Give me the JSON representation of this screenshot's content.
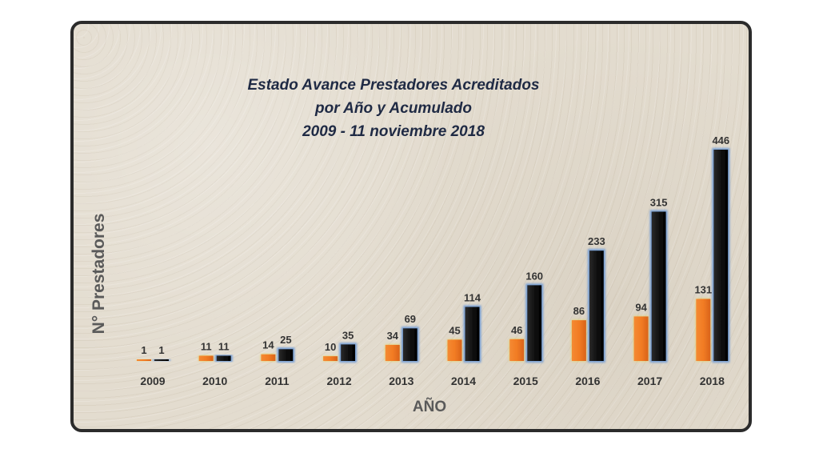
{
  "chart_data": {
    "type": "bar",
    "title_lines": [
      "Estado Avance Prestadores  Acreditados",
      "por Año y Acumulado",
      "2009 - 11 noviembre 2018"
    ],
    "xlabel": "AÑO",
    "ylabel": "N° Prestadores",
    "categories": [
      "2009",
      "2010",
      "2011",
      "2012",
      "2013",
      "2014",
      "2015",
      "2016",
      "2017",
      "2018"
    ],
    "series": [
      {
        "color": "#ee7a2a",
        "values": [
          1,
          11,
          14,
          10,
          34,
          45,
          46,
          86,
          94,
          131
        ]
      },
      {
        "color": "#0d0d0d",
        "values": [
          1,
          11,
          25,
          35,
          69,
          114,
          160,
          233,
          315,
          446
        ]
      }
    ],
    "ylim": [
      0,
      446
    ],
    "grid": false,
    "legend": "none"
  }
}
